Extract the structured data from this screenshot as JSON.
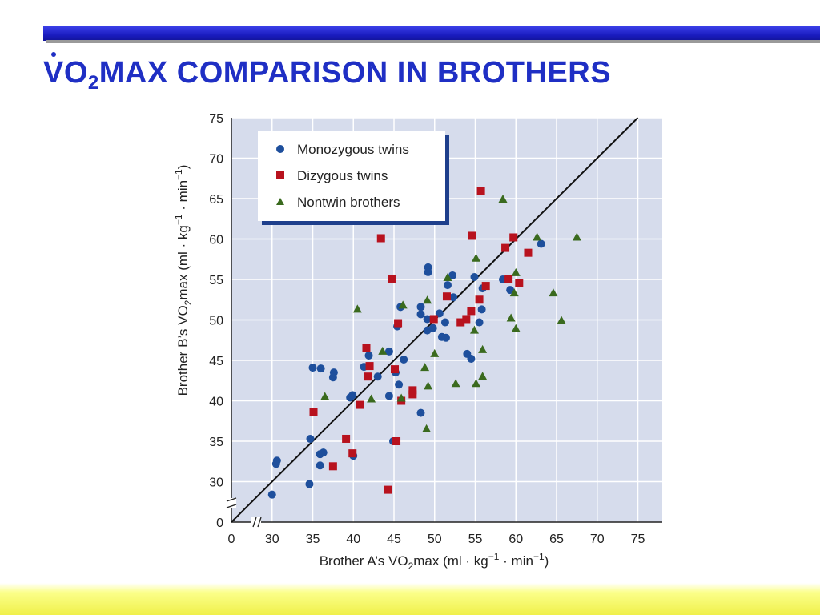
{
  "slide": {
    "title_v": "V",
    "title_o": "O",
    "title_sub": "2",
    "title_rest": "MAX COMPARISON IN BROTHERS"
  },
  "colors": {
    "title": "#1f2fc4",
    "plot_bg": "#d6dcec",
    "mono": "#1e4f9c",
    "di": "#b8121e",
    "non": "#3a6a1e",
    "band_blue": "#1a1cc0",
    "band_yellow": "#f0f04a"
  },
  "chart_data": {
    "type": "scatter",
    "xlabel_pre": "Brother A’s ",
    "ylabel_pre": "Brother B’s ",
    "label_v": "V",
    "label_o": "O",
    "label_sub": "2",
    "label_post": "max (ml · kg",
    "label_sup1": "−1",
    "label_mid": " · min",
    "label_sup2": "−1",
    "label_close": ")",
    "xlim": [
      25,
      78
    ],
    "ylim": [
      25,
      75
    ],
    "axis_break": true,
    "x_ticks": [
      "0",
      "30",
      "35",
      "40",
      "45",
      "50",
      "55",
      "60",
      "65",
      "70",
      "75"
    ],
    "y_ticks": [
      "0",
      "30",
      "35",
      "40",
      "45",
      "50",
      "55",
      "60",
      "65",
      "70",
      "75"
    ],
    "grid": true,
    "identity_line": true,
    "legend_position": "top-left",
    "series": [
      {
        "name": "Monozygous twins",
        "marker": "circle",
        "points": [
          [
            30.0,
            28.4
          ],
          [
            30.5,
            32.2
          ],
          [
            30.6,
            32.6
          ],
          [
            34.6,
            29.7
          ],
          [
            34.7,
            35.3
          ],
          [
            35.0,
            44.1
          ],
          [
            35.9,
            33.4
          ],
          [
            35.9,
            32.0
          ],
          [
            36.0,
            44.0
          ],
          [
            36.3,
            33.6
          ],
          [
            37.5,
            42.9
          ],
          [
            37.6,
            43.5
          ],
          [
            39.6,
            40.4
          ],
          [
            39.9,
            40.7
          ],
          [
            40.0,
            33.2
          ],
          [
            41.3,
            44.2
          ],
          [
            41.9,
            45.6
          ],
          [
            43.0,
            43.0
          ],
          [
            44.4,
            46.1
          ],
          [
            44.4,
            40.6
          ],
          [
            44.9,
            35.0
          ],
          [
            45.2,
            43.5
          ],
          [
            45.4,
            49.2
          ],
          [
            45.6,
            42.0
          ],
          [
            45.8,
            51.6
          ],
          [
            46.2,
            45.1
          ],
          [
            48.3,
            38.5
          ],
          [
            48.3,
            51.6
          ],
          [
            48.3,
            50.7
          ],
          [
            49.1,
            50.1
          ],
          [
            49.1,
            48.7
          ],
          [
            49.2,
            56.5
          ],
          [
            49.2,
            55.9
          ],
          [
            49.8,
            49.0
          ],
          [
            50.6,
            50.8
          ],
          [
            50.9,
            47.9
          ],
          [
            51.3,
            49.7
          ],
          [
            51.4,
            47.8
          ],
          [
            51.6,
            54.3
          ],
          [
            52.2,
            55.5
          ],
          [
            52.3,
            52.8
          ],
          [
            54.0,
            45.8
          ],
          [
            54.5,
            45.2
          ],
          [
            54.9,
            55.3
          ],
          [
            55.5,
            49.7
          ],
          [
            55.8,
            51.3
          ],
          [
            55.9,
            53.9
          ],
          [
            58.4,
            55.0
          ],
          [
            59.3,
            53.7
          ],
          [
            63.1,
            59.4
          ]
        ]
      },
      {
        "name": "Dizygous twins",
        "marker": "square",
        "points": [
          [
            35.1,
            38.6
          ],
          [
            37.5,
            31.9
          ],
          [
            39.1,
            35.3
          ],
          [
            39.9,
            33.5
          ],
          [
            40.8,
            39.5
          ],
          [
            41.6,
            46.5
          ],
          [
            41.8,
            43.0
          ],
          [
            42.0,
            44.3
          ],
          [
            43.4,
            60.1
          ],
          [
            44.3,
            29.0
          ],
          [
            44.8,
            55.1
          ],
          [
            45.1,
            43.9
          ],
          [
            45.3,
            35.0
          ],
          [
            45.5,
            49.6
          ],
          [
            45.9,
            40.0
          ],
          [
            47.3,
            41.3
          ],
          [
            47.3,
            40.8
          ],
          [
            49.9,
            50.1
          ],
          [
            51.5,
            52.9
          ],
          [
            53.2,
            49.7
          ],
          [
            53.9,
            50.1
          ],
          [
            54.5,
            51.1
          ],
          [
            54.6,
            60.4
          ],
          [
            55.5,
            52.5
          ],
          [
            55.7,
            65.9
          ],
          [
            56.3,
            54.2
          ],
          [
            58.7,
            58.9
          ],
          [
            59.1,
            55.0
          ],
          [
            59.7,
            60.2
          ],
          [
            60.4,
            54.6
          ],
          [
            61.5,
            58.3
          ]
        ]
      },
      {
        "name": "Nontwin brothers",
        "marker": "triangle",
        "points": [
          [
            36.5,
            40.5
          ],
          [
            40.5,
            51.3
          ],
          [
            42.2,
            40.2
          ],
          [
            43.6,
            46.1
          ],
          [
            45.9,
            40.3
          ],
          [
            46.1,
            51.8
          ],
          [
            48.8,
            44.1
          ],
          [
            49.0,
            36.5
          ],
          [
            49.1,
            52.4
          ],
          [
            49.2,
            41.8
          ],
          [
            50.0,
            45.8
          ],
          [
            51.6,
            55.2
          ],
          [
            52.6,
            42.1
          ],
          [
            54.9,
            48.7
          ],
          [
            55.1,
            42.1
          ],
          [
            55.1,
            57.6
          ],
          [
            55.9,
            43.0
          ],
          [
            55.9,
            46.3
          ],
          [
            58.4,
            64.9
          ],
          [
            59.4,
            50.2
          ],
          [
            59.8,
            53.3
          ],
          [
            60.0,
            48.9
          ],
          [
            60.0,
            55.8
          ],
          [
            62.6,
            60.2
          ],
          [
            64.6,
            53.3
          ],
          [
            65.6,
            49.9
          ],
          [
            67.5,
            60.2
          ]
        ]
      }
    ]
  }
}
